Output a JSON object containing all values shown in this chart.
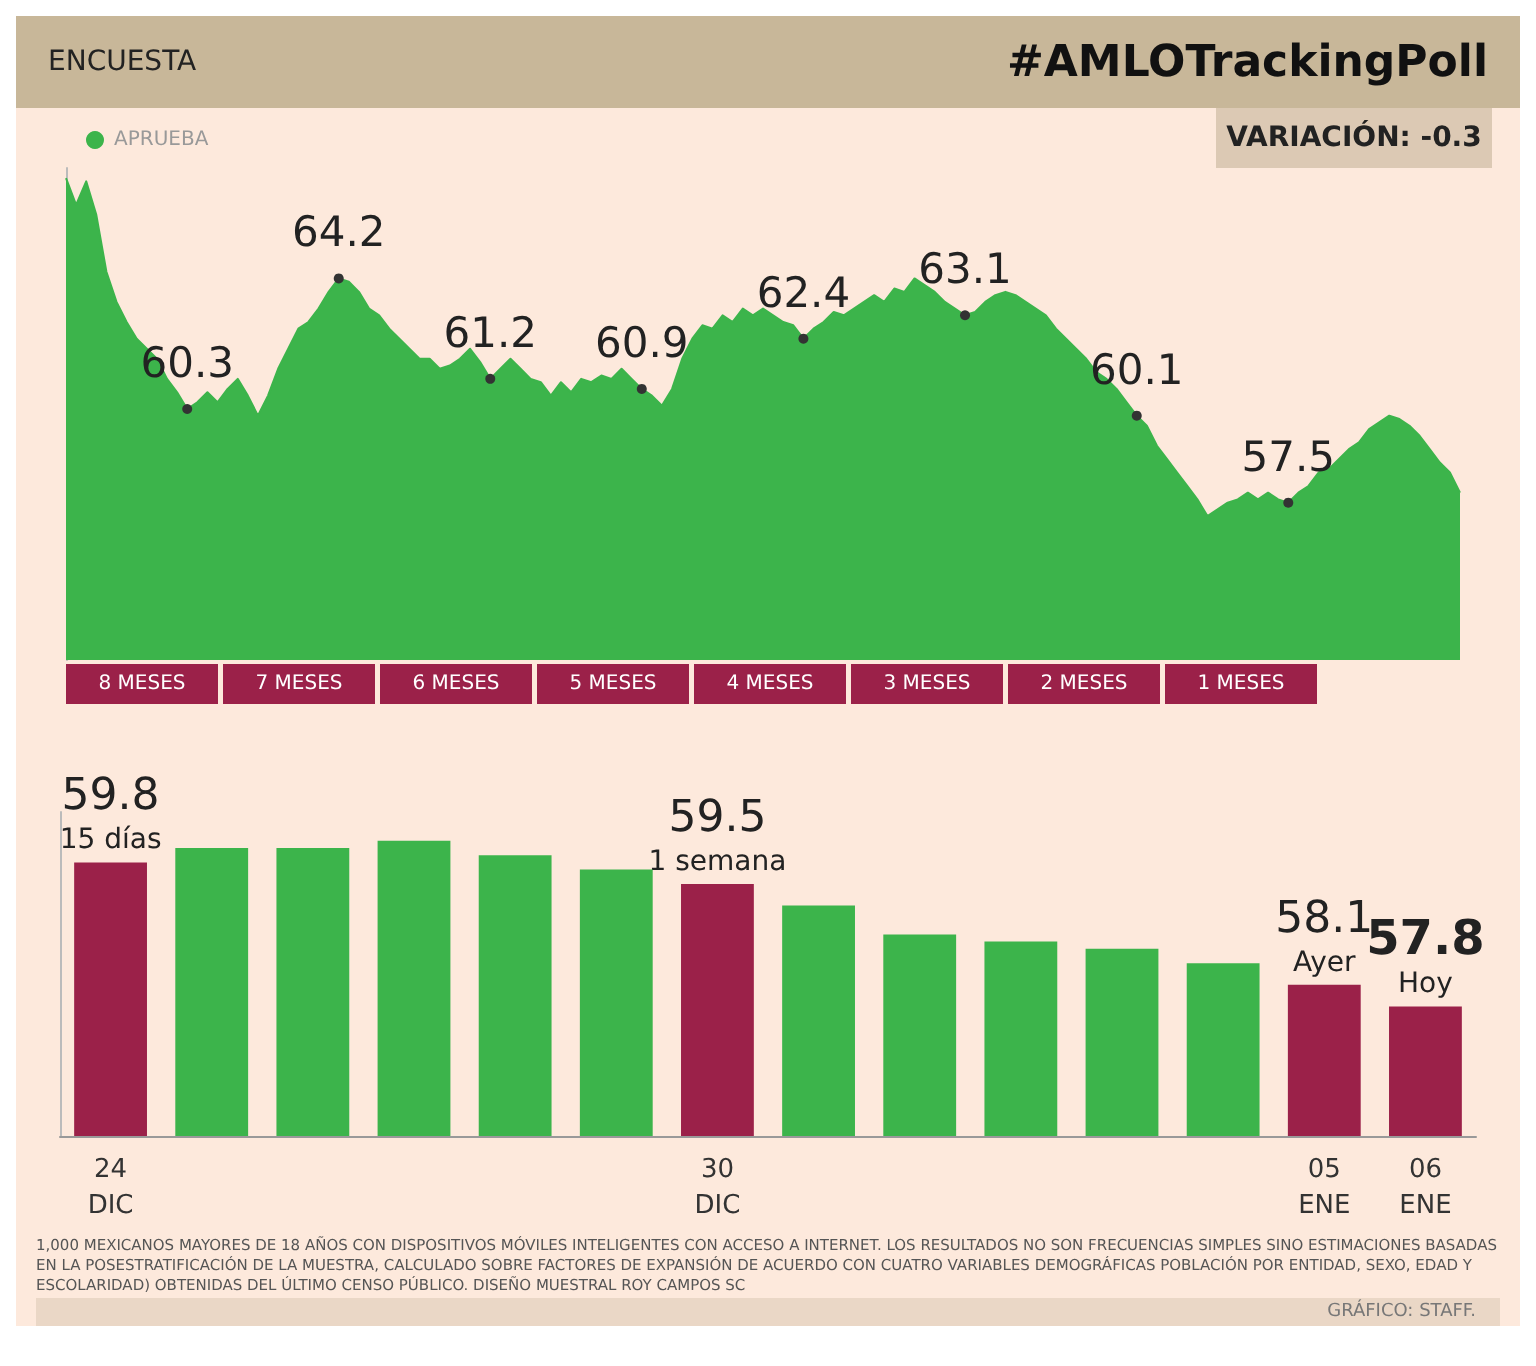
{
  "chart_data": [
    {
      "type": "area",
      "title": "#AMLOTrackingPoll",
      "subtitle": "ENCUESTA",
      "categories": [
        null,
        null,
        null,
        null,
        null,
        null,
        null,
        null,
        null,
        null,
        null,
        null,
        null,
        null,
        null,
        null,
        null,
        null,
        null,
        null,
        null,
        null,
        null,
        null,
        null,
        null,
        null,
        null,
        null,
        null,
        null,
        null,
        null,
        null,
        null,
        null,
        null,
        null,
        null,
        null,
        null,
        null,
        null,
        null,
        null,
        null,
        null,
        null,
        null,
        null,
        null,
        null,
        null,
        null,
        null,
        null,
        null,
        null,
        null,
        null,
        null,
        null,
        null,
        null,
        null,
        null,
        null,
        null,
        null,
        null,
        null,
        null,
        null,
        null,
        null,
        null,
        null,
        null,
        null,
        null,
        null,
        null,
        null,
        null,
        null,
        null,
        null,
        null,
        null,
        null,
        null,
        null,
        null,
        null,
        null,
        null,
        null,
        null,
        null,
        null,
        null,
        null,
        null,
        null,
        null,
        null,
        null,
        null,
        null,
        null,
        null,
        null,
        null,
        null,
        null,
        null,
        null,
        null,
        null,
        null,
        null,
        null,
        null,
        null,
        null,
        null,
        null,
        null,
        null,
        null,
        null,
        null,
        null,
        null,
        null,
        null,
        null,
        null,
        null
      ],
      "series": [
        {
          "name": "APRUEBA",
          "color": "#3cb44b",
          "values": [
            67.2,
            66.4,
            67.1,
            66.1,
            64.4,
            63.5,
            62.9,
            62.4,
            62.1,
            61.8,
            61.2,
            60.8,
            60.3,
            60.5,
            60.8,
            60.5,
            60.9,
            61.2,
            60.7,
            60.1,
            60.7,
            61.5,
            62.1,
            62.7,
            62.9,
            63.3,
            63.8,
            64.2,
            64.1,
            63.8,
            63.3,
            63.1,
            62.7,
            62.4,
            62.1,
            61.8,
            61.8,
            61.5,
            61.6,
            61.8,
            62.1,
            61.7,
            61.2,
            61.5,
            61.8,
            61.5,
            61.2,
            61.1,
            60.7,
            61.1,
            60.8,
            61.2,
            61.1,
            61.3,
            61.2,
            61.5,
            61.2,
            60.9,
            60.7,
            60.4,
            60.9,
            61.8,
            62.4,
            62.8,
            62.7,
            63.1,
            62.9,
            63.3,
            63.1,
            63.3,
            63.1,
            62.9,
            62.8,
            62.4,
            62.7,
            62.9,
            63.2,
            63.1,
            63.3,
            63.5,
            63.7,
            63.5,
            63.9,
            63.8,
            64.2,
            64.0,
            63.8,
            63.5,
            63.3,
            63.1,
            63.2,
            63.5,
            63.7,
            63.8,
            63.7,
            63.5,
            63.3,
            63.1,
            62.7,
            62.4,
            62.1,
            61.8,
            61.4,
            61.2,
            60.9,
            60.5,
            60.1,
            59.8,
            59.2,
            58.8,
            58.4,
            58.0,
            57.6,
            57.1,
            57.3,
            57.5,
            57.6,
            57.8,
            57.6,
            57.8,
            57.6,
            57.5,
            57.8,
            58.0,
            58.4,
            58.5,
            58.8,
            59.1,
            59.3,
            59.7,
            59.9,
            60.1,
            60.0,
            59.8,
            59.5,
            59.1,
            58.7,
            58.4,
            57.8
          ],
          "value_labels": [
            null,
            null,
            null,
            null,
            null,
            null,
            null,
            null,
            null,
            null,
            null,
            null,
            "60.3",
            null,
            null,
            null,
            null,
            null,
            null,
            null,
            null,
            null,
            null,
            null,
            null,
            null,
            null,
            "64.2",
            null,
            null,
            null,
            null,
            null,
            null,
            null,
            null,
            null,
            null,
            null,
            null,
            null,
            null,
            "61.2",
            null,
            null,
            null,
            null,
            null,
            null,
            null,
            null,
            null,
            null,
            null,
            null,
            null,
            null,
            "60.9",
            null,
            null,
            null,
            null,
            null,
            null,
            null,
            null,
            null,
            null,
            null,
            null,
            null,
            null,
            null,
            "62.4",
            null,
            null,
            null,
            null,
            null,
            null,
            null,
            null,
            null,
            null,
            null,
            null,
            null,
            null,
            null,
            "63.1",
            null,
            null,
            null,
            null,
            null,
            null,
            null,
            null,
            null,
            null,
            null,
            null,
            null,
            null,
            null,
            null,
            "60.1",
            null,
            null,
            null,
            null,
            null,
            null,
            null,
            null,
            null,
            null,
            null,
            null,
            null,
            null,
            "57.5",
            null,
            null,
            null,
            null,
            null,
            null,
            null,
            null,
            null,
            null,
            null,
            null,
            null,
            null,
            null,
            null,
            null
          ]
        }
      ],
      "ylim": [
        52.8,
        67.5
      ],
      "tick_labels": false,
      "legend": "top left",
      "grid": false,
      "annotations": [
        "VARIACIÓN: -0.3",
        "8 MESES",
        "7 MESES",
        "6 MESES",
        "5 MESES",
        "4 MESES",
        "3 MESES",
        "2 MESES",
        "1 MESES"
      ]
    },
    {
      "type": "bar",
      "categories": [
        "24\nDIC",
        null,
        null,
        null,
        null,
        null,
        "30\nDIC",
        null,
        null,
        null,
        null,
        null,
        "05\nENE",
        "06\nENE"
      ],
      "values": [
        59.8,
        60.0,
        60.0,
        60.1,
        59.9,
        59.7,
        59.5,
        59.2,
        58.8,
        58.7,
        58.6,
        58.4,
        58.1,
        57.8
      ],
      "colors": [
        "#9b2149",
        "#3cb44b",
        "#3cb44b",
        "#3cb44b",
        "#3cb44b",
        "#3cb44b",
        "#9b2149",
        "#3cb44b",
        "#3cb44b",
        "#3cb44b",
        "#3cb44b",
        "#3cb44b",
        "#9b2149",
        "#9b2149"
      ],
      "value_labels": [
        "59.8",
        null,
        null,
        null,
        null,
        null,
        "59.5",
        null,
        null,
        null,
        null,
        null,
        "58.1",
        "57.8"
      ],
      "ylim": [
        56,
        60.5
      ],
      "tick_labels": "x",
      "grid": false,
      "annotations": [
        {
          "text": "15 días",
          "x": "24\nDIC",
          "y": 59.8
        },
        {
          "text": "1 semana",
          "x": "30\nDIC",
          "y": 59.5
        },
        {
          "text": "Ayer",
          "x": "05\nENE",
          "y": 58.1
        },
        {
          "text": "Hoy",
          "x": "06\nENE",
          "y": 57.8
        },
        "1,000 MEXICANOS MAYORES DE 18 AÑOS CON DISPOSITIVOS MÓVILES INTELIGENTES CON ACCESO A INTERNET. LOS RESULTADOS NO SON FRECUENCIAS SIMPLES SINO ESTIMACIONES BASADAS EN LA POSESTRATIFICACIÓN DE LA MUESTRA, CALCULADO SOBRE FACTORES DE EXPANSIÓN DE ACUERDO CON CUATRO VARIABLES DEMOGRÁFICAS POBLACIÓN POR ENTIDAD, SEXO, EDAD Y ESCOLARIDAD) OBTENIDAS DEL ÚLTIMO CENSO PÚBLICO. DISEÑO MUESTRAL ROY CAMPOS SC",
        "GRÁFICO: STAFF."
      ]
    }
  ]
}
